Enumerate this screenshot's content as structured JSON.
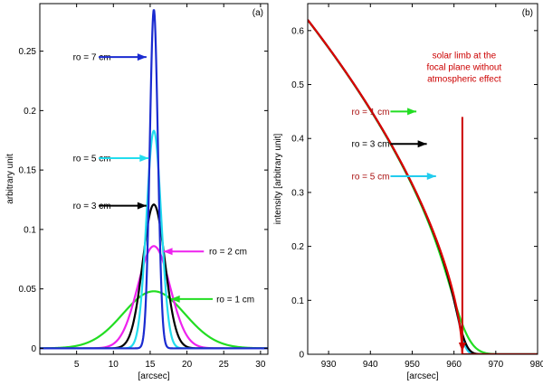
{
  "chart_data": [
    {
      "type": "line",
      "panel_label": "(a)",
      "xlabel": "[arcsec]",
      "ylabel": "arbitrary unit",
      "xlim": [
        0,
        31
      ],
      "ylim": [
        -0.005,
        0.29
      ],
      "xticks": [
        5,
        10,
        15,
        20,
        25,
        30
      ],
      "yticks": [
        0,
        0.05,
        0.1,
        0.15,
        0.2,
        0.25
      ],
      "ytick_labels": [
        "0",
        "0.05",
        "0.1",
        "0.15",
        "0.2",
        "0.25"
      ],
      "series": [
        {
          "name": "ro = 1 cm",
          "color": "#22dd22",
          "peak": 0.048,
          "center": 15.5,
          "sigma": 4.2
        },
        {
          "name": "ro = 2 cm",
          "color": "#ee22ee",
          "peak": 0.086,
          "center": 15.5,
          "sigma": 2.2
        },
        {
          "name": "ro = 3 cm",
          "color": "#000000",
          "peak": 0.121,
          "center": 15.5,
          "sigma": 1.5
        },
        {
          "name": "ro = 5 cm",
          "color": "#22ddee",
          "peak": 0.183,
          "center": 15.5,
          "sigma": 1.0
        },
        {
          "name": "ro = 7 cm",
          "color": "#1a2bd0",
          "peak": 0.285,
          "center": 15.5,
          "sigma": 0.55
        }
      ],
      "annotations": [
        {
          "text": "ro = 7 cm",
          "color": "#000000",
          "tx": 4.5,
          "ty": 0.245,
          "ax0": 8.0,
          "ax1": 14.5,
          "ay": 0.245,
          "arrow_color": "#1a2bd0"
        },
        {
          "text": "ro = 5 cm",
          "color": "#000000",
          "tx": 4.5,
          "ty": 0.16,
          "ax0": 8.0,
          "ax1": 14.8,
          "ay": 0.16,
          "arrow_color": "#22ddee"
        },
        {
          "text": "ro = 3 cm",
          "color": "#000000",
          "tx": 4.5,
          "ty": 0.12,
          "ax0": 8.0,
          "ax1": 14.5,
          "ay": 0.12,
          "arrow_color": "#000000"
        },
        {
          "text": "ro = 2 cm",
          "color": "#000000",
          "tx": 23.0,
          "ty": 0.0815,
          "ax0": 22.3,
          "ax1": 16.8,
          "ay": 0.0815,
          "arrow_color": "#ee22ee"
        },
        {
          "text": "ro = 1 cm",
          "color": "#000000",
          "tx": 24.0,
          "ty": 0.0415,
          "ax0": 23.5,
          "ax1": 17.8,
          "ay": 0.0415,
          "arrow_color": "#22dd22"
        }
      ]
    },
    {
      "type": "line",
      "panel_label": "(b)",
      "xlabel": "[arcsec]",
      "ylabel": "intensity [arbitrary unit]",
      "xlim": [
        925,
        980
      ],
      "ylim": [
        0,
        0.65
      ],
      "xticks": [
        930,
        940,
        950,
        960,
        970,
        980
      ],
      "yticks": [
        0,
        0.1,
        0.2,
        0.3,
        0.4,
        0.5,
        0.6
      ],
      "ytick_labels": [
        "0",
        "0.1",
        "0.2",
        "0.3",
        "0.4",
        "0.5",
        "0.6"
      ],
      "series": [
        {
          "name": "ro = 1 cm",
          "color": "#22dd22",
          "blur": 3.0
        },
        {
          "name": "ro = 5 cm",
          "color": "#22ccee",
          "blur": 1.2
        },
        {
          "name": "ro = 3 cm",
          "color": "#000000",
          "blur": 1.6
        },
        {
          "name": "solar limb at the focal plane without atmospheric effect",
          "color": "#dd0000",
          "blur": 0
        }
      ],
      "limb": {
        "R": 962,
        "c": 0.62,
        "k": 0.6
      },
      "annotations": [
        {
          "text": "ro = 1 cm",
          "color": "#aa1111",
          "tx": 935.5,
          "ty": 0.45,
          "ax0": 944.8,
          "ax1": 951.0,
          "ay": 0.45,
          "arrow_color": "#22dd22"
        },
        {
          "text": "ro = 3 cm",
          "color": "#000000",
          "tx": 935.5,
          "ty": 0.39,
          "ax0": 944.8,
          "ax1": 953.5,
          "ay": 0.39,
          "arrow_color": "#000000"
        },
        {
          "text": "ro = 5 cm",
          "color": "#aa1111",
          "tx": 935.5,
          "ty": 0.33,
          "ax0": 944.8,
          "ax1": 955.7,
          "ay": 0.33,
          "arrow_color": "#22ccee"
        }
      ],
      "limb_note": {
        "lines": [
          "solar limb at the",
          "focal plane without",
          "atmospheric effect"
        ],
        "color": "#cc0000",
        "x": 962,
        "ty": 0.505,
        "ay0": 0.44,
        "ay1": 0.005
      }
    }
  ]
}
